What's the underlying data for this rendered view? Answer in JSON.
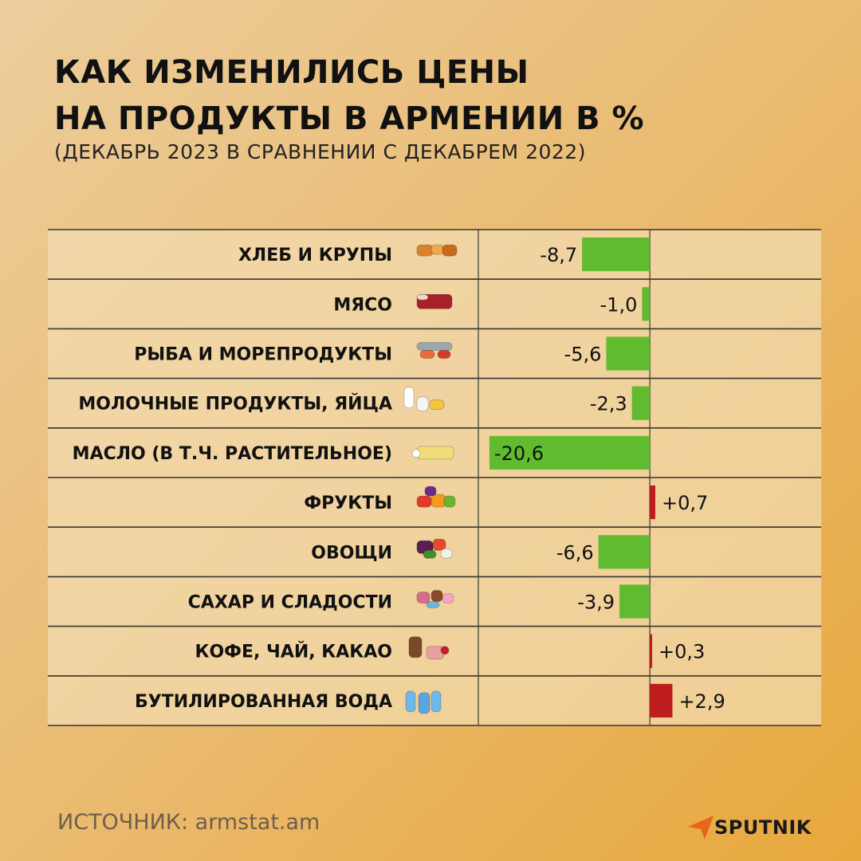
{
  "chart_data": {
    "type": "bar",
    "orientation": "horizontal",
    "title": [
      "КАК ИЗМЕНИЛИСЬ ЦЕНЫ",
      "НА ПРОДУКТЫ В АРМЕНИИ В %"
    ],
    "subtitle": "(ДЕКАБРЬ 2023 В СРАВНЕНИИ С ДЕКАБРЕМ 2022)",
    "categories": [
      "ХЛЕБ И КРУПЫ",
      "МЯСО",
      "РЫБА И МОРЕПРОДУКТЫ",
      "МОЛОЧНЫЕ ПРОДУКТЫ, ЯЙЦА",
      "МАСЛО (В Т.Ч. РАСТИТЕЛЬНОЕ)",
      "ФРУКТЫ",
      "ОВОЩИ",
      "САХАР И СЛАДОСТИ",
      "КОФЕ, ЧАЙ, КАКАО",
      "БУТИЛИРОВАННАЯ ВОДА"
    ],
    "values": [
      -8.7,
      -1.0,
      -5.6,
      -2.3,
      -20.6,
      0.7,
      -6.6,
      -3.9,
      0.3,
      2.9
    ],
    "value_labels": [
      "-8,7",
      "-1,0",
      "-5,6",
      "-2,3",
      "-20,6",
      "+0,7",
      "-6,6",
      "-3,9",
      "+0,3",
      "+2,9"
    ],
    "icons": [
      "bread-icon",
      "meat-icon",
      "fish-icon",
      "dairy-icon",
      "butter-icon",
      "fruits-icon",
      "vegetables-icon",
      "sweets-icon",
      "coffee-icon",
      "water-icon"
    ],
    "xlim": [
      -21,
      22
    ],
    "grid": "rows",
    "colors": {
      "negative": "#60bb2f",
      "positive": "#bd1d1d",
      "row_fill": "#f3dcb2",
      "grid": "#3a3a3a"
    }
  },
  "footer": {
    "source": "ИСТОЧНИК: armstat.am",
    "brand": "SPUTNIK",
    "brand_color": "#e8651c"
  }
}
